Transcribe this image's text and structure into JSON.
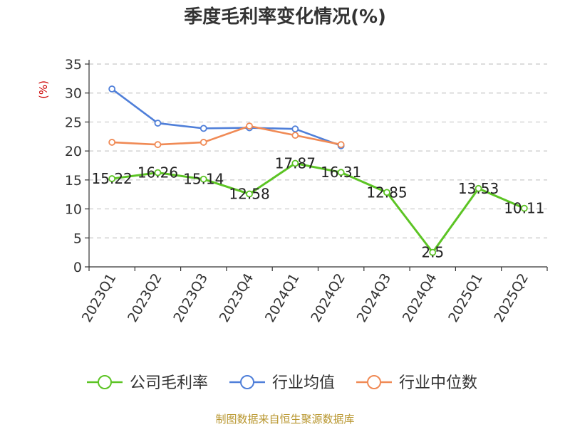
{
  "chart_data": {
    "type": "line",
    "title": "季度毛利率变化情况(%)",
    "ylabel": "(%)",
    "xlabel": "",
    "categories": [
      "2023Q1",
      "2023Q2",
      "2023Q3",
      "2023Q4",
      "2024Q1",
      "2024Q2",
      "2024Q3",
      "2024Q4",
      "2025Q1",
      "2025Q2"
    ],
    "ylim": [
      0,
      35
    ],
    "yticks": [
      0,
      5,
      10,
      15,
      20,
      25,
      30,
      35
    ],
    "grid": true,
    "legend_position": "bottom",
    "series": [
      {
        "name": "公司毛利率",
        "color": "#5cc424",
        "values": [
          15.22,
          16.26,
          15.14,
          12.58,
          17.87,
          16.31,
          12.85,
          2.5,
          13.53,
          10.11
        ],
        "labels": [
          "15.22",
          "16.26",
          "15.14",
          "12.58",
          "17.87",
          "16.31",
          "12.85",
          "2.5",
          "13.53",
          "10.11"
        ]
      },
      {
        "name": "行业均值",
        "color": "#4f7fd9",
        "values": [
          30.7,
          24.8,
          23.9,
          24.0,
          23.8,
          20.9,
          null,
          null,
          null,
          null
        ]
      },
      {
        "name": "行业中位数",
        "color": "#f08a55",
        "values": [
          21.5,
          21.1,
          21.5,
          24.3,
          22.7,
          21.1,
          null,
          null,
          null,
          null
        ]
      }
    ]
  },
  "source": "制图数据来自恒生聚源数据库"
}
